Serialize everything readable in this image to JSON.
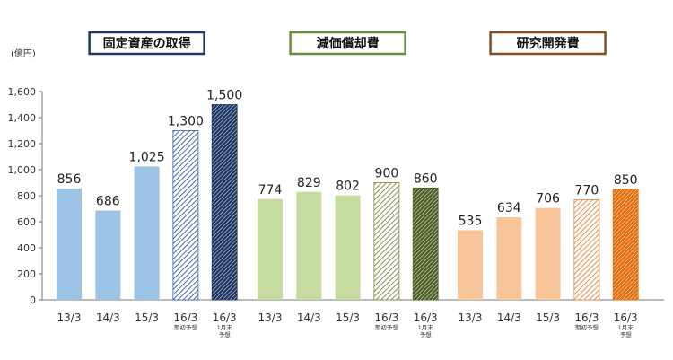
{
  "chart_data": {
    "type": "bar",
    "unit_label": "(億円)",
    "ylim": [
      0,
      1600
    ],
    "y_ticks": [
      "0",
      "200",
      "400",
      "600",
      "800",
      "1,000",
      "1,200",
      "1,400",
      "1,600"
    ],
    "y_tick_values": [
      0,
      200,
      400,
      600,
      800,
      1000,
      1200,
      1400,
      1600
    ],
    "grid": false,
    "groups": [
      {
        "title": "固定資産の取得",
        "border_color": "#1f3864",
        "bars": [
          {
            "category": "13/3",
            "note": "",
            "value": 856,
            "label": "856",
            "style": "solid",
            "color": "#9dc3e6"
          },
          {
            "category": "14/3",
            "note": "",
            "value": 686,
            "label": "686",
            "style": "solid",
            "color": "#9dc3e6"
          },
          {
            "category": "15/3",
            "note": "",
            "value": 1025,
            "label": "1,025",
            "style": "solid",
            "color": "#9dc3e6"
          },
          {
            "category": "16/3",
            "note": "期初予想",
            "value": 1300,
            "label": "1,300",
            "style": "hatch",
            "color": "#2e5aa8"
          },
          {
            "category": "16/3",
            "note": "1月末\n予想",
            "value": 1500,
            "label": "1,500",
            "style": "dense",
            "color": "#1f3864"
          }
        ]
      },
      {
        "title": "減価償却費",
        "border_color": "#6e8b3d",
        "bars": [
          {
            "category": "13/3",
            "note": "",
            "value": 774,
            "label": "774",
            "style": "solid",
            "color": "#c5dba0"
          },
          {
            "category": "14/3",
            "note": "",
            "value": 829,
            "label": "829",
            "style": "solid",
            "color": "#c5dba0"
          },
          {
            "category": "15/3",
            "note": "",
            "value": 802,
            "label": "802",
            "style": "solid",
            "color": "#c5dba0"
          },
          {
            "category": "16/3",
            "note": "期初予想",
            "value": 900,
            "label": "900",
            "style": "hatch",
            "color": "#6e8b3d"
          },
          {
            "category": "16/3",
            "note": "1月末\n予想",
            "value": 860,
            "label": "860",
            "style": "dense",
            "color": "#4f6228"
          }
        ]
      },
      {
        "title": "研究開発費",
        "border_color": "#7f4f2a",
        "bars": [
          {
            "category": "13/3",
            "note": "",
            "value": 535,
            "label": "535",
            "style": "solid",
            "color": "#f8c59b"
          },
          {
            "category": "14/3",
            "note": "",
            "value": 634,
            "label": "634",
            "style": "solid",
            "color": "#f8c59b"
          },
          {
            "category": "15/3",
            "note": "",
            "value": 706,
            "label": "706",
            "style": "solid",
            "color": "#f8c59b"
          },
          {
            "category": "16/3",
            "note": "期初予想",
            "value": 770,
            "label": "770",
            "style": "hatch",
            "color": "#e2843b"
          },
          {
            "category": "16/3",
            "note": "1月末\n予想",
            "value": 850,
            "label": "850",
            "style": "dense",
            "color": "#e46c0a"
          }
        ]
      }
    ]
  }
}
